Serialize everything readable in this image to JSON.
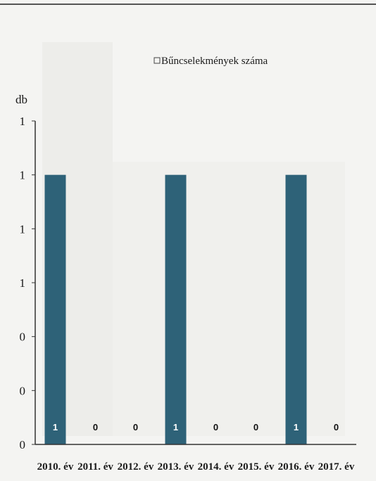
{
  "chart_data": {
    "type": "bar",
    "title": "Bűncselekmények száma",
    "ylabel": "db",
    "xlabel": "",
    "categories": [
      "2010. év",
      "2011. év",
      "2012. év",
      "2013. év",
      "2014. év",
      "2015. év",
      "2016. év",
      "2017. év"
    ],
    "values": [
      1,
      0,
      0,
      1,
      0,
      0,
      1,
      0
    ],
    "data_labels": [
      "1",
      "0",
      "0",
      "1",
      "0",
      "0",
      "1",
      "0"
    ],
    "ytick_labels": [
      "0",
      "0",
      "0",
      "1",
      "1",
      "1",
      "1"
    ],
    "ylim": [
      0,
      1.2
    ],
    "legend": {
      "position": "top",
      "entries": [
        "Bűncselekmények száma"
      ]
    },
    "grid": false,
    "colors": {
      "bar": "#2e6278",
      "axis": "#333333",
      "background": "#f4f4f2"
    }
  }
}
